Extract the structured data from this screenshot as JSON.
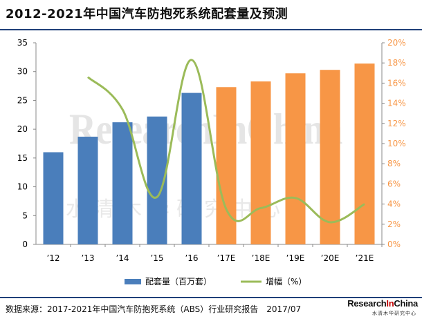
{
  "title": "2012-2021年中国汽车防抱死系统配套量及预测",
  "source": "数据来源：2017-2021年中国汽车防抱死系统（ABS）行业研究报告　2017/07",
  "logo": {
    "main_a": "Research",
    "main_b": "In",
    "main_c": "China",
    "sub": "水清木华研究中心"
  },
  "watermark": {
    "en": "ResearchInChina",
    "cn": "水清木华研究中心"
  },
  "colors": {
    "actual": "#4a7ebb",
    "forecast": "#f79646",
    "growth": "#9bbb59",
    "left_axis": "#000000",
    "right_axis": "#f79646"
  },
  "chart_data": {
    "type": "bar",
    "categories": [
      "’12",
      "’13",
      "’14",
      "’15",
      "’16",
      "’17E",
      "’18E",
      "’19E",
      "’20E",
      "’21E"
    ],
    "series": [
      {
        "name": "配套量（百万套）",
        "type": "bar",
        "axis": "left",
        "values": [
          16.0,
          18.7,
          21.2,
          22.2,
          26.3,
          27.3,
          28.3,
          29.7,
          30.3,
          31.4
        ],
        "forecast_from_index": 5
      },
      {
        "name": "增幅（%）",
        "type": "line",
        "axis": "right",
        "values": [
          null,
          16.6,
          13.4,
          4.7,
          18.3,
          3.5,
          3.6,
          4.6,
          2.2,
          4.0
        ]
      }
    ],
    "ylim_left": [
      0,
      35
    ],
    "yticks_left": [
      0,
      5,
      10,
      15,
      20,
      25,
      30,
      35
    ],
    "ylim_right": [
      0,
      20
    ],
    "yticks_right": [
      "0%",
      "2%",
      "4%",
      "6%",
      "8%",
      "10%",
      "12%",
      "14%",
      "16%",
      "18%",
      "20%"
    ],
    "legend": {
      "position": "bottom",
      "entries": [
        "配套量（百万套）",
        "增幅（%）"
      ]
    },
    "grid": false
  }
}
